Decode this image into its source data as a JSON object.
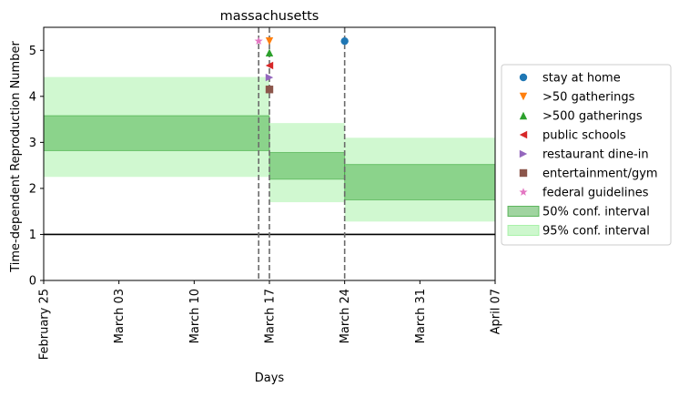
{
  "chart_data": {
    "type": "area",
    "title": "massachusetts",
    "xlabel": "Days",
    "ylabel": "Time-dependent Reproduction Number",
    "xlim": [
      "2020-02-25",
      "2020-04-07"
    ],
    "ylim": [
      0,
      5.5
    ],
    "x_ticks": [
      {
        "date": "2020-02-25",
        "label": "February 25"
      },
      {
        "date": "2020-03-03",
        "label": "March 03"
      },
      {
        "date": "2020-03-10",
        "label": "March 10"
      },
      {
        "date": "2020-03-17",
        "label": "March 17"
      },
      {
        "date": "2020-03-24",
        "label": "March 24"
      },
      {
        "date": "2020-03-31",
        "label": "March 31"
      },
      {
        "date": "2020-04-07",
        "label": "April 07"
      }
    ],
    "y_ticks": [
      0,
      1,
      2,
      3,
      4,
      5
    ],
    "reference_line": {
      "y": 1,
      "color": "#000000"
    },
    "intervals": [
      {
        "start": "2020-02-25",
        "end": "2020-03-17",
        "ci50": [
          2.82,
          3.58
        ],
        "ci95": [
          2.25,
          4.42
        ]
      },
      {
        "start": "2020-03-17",
        "end": "2020-03-24",
        "ci50": [
          2.2,
          2.78
        ],
        "ci95": [
          1.7,
          3.42
        ]
      },
      {
        "start": "2020-03-24",
        "end": "2020-04-07",
        "ci50": [
          1.75,
          2.52
        ],
        "ci95": [
          1.28,
          3.1
        ]
      }
    ],
    "interventions": [
      {
        "name": "stay at home",
        "date": "2020-03-24",
        "y": 5.2,
        "marker": "circle",
        "color": "#1f77b4"
      },
      {
        "name": ">50 gatherings",
        "date": "2020-03-17",
        "y": 5.2,
        "marker": "triangle-down",
        "color": "#ff7f0e"
      },
      {
        "name": ">500 gatherings",
        "date": "2020-03-17",
        "y": 4.95,
        "marker": "triangle-up",
        "color": "#2ca02c"
      },
      {
        "name": "public schools",
        "date": "2020-03-17",
        "y": 4.67,
        "marker": "triangle-left",
        "color": "#d62728"
      },
      {
        "name": "restaurant dine-in",
        "date": "2020-03-17",
        "y": 4.41,
        "marker": "triangle-right",
        "color": "#9467bd"
      },
      {
        "name": "entertainment/gym",
        "date": "2020-03-17",
        "y": 4.15,
        "marker": "square",
        "color": "#8c564b"
      },
      {
        "name": "federal guidelines",
        "date": "2020-03-16",
        "y": 5.2,
        "marker": "star",
        "color": "#e377c2"
      }
    ],
    "vertical_lines": [
      "2020-03-16",
      "2020-03-17",
      "2020-03-24"
    ],
    "ci50_label": "50% conf. interval",
    "ci95_label": "95% conf. interval",
    "ci50_color": "#2ca02c",
    "ci95_color": "#90ee90",
    "grid": false,
    "legend_position": "right"
  }
}
